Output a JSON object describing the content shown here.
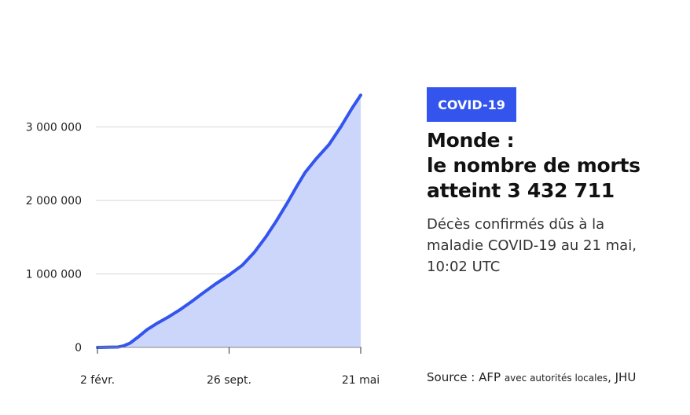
{
  "badge": "COVID-19",
  "title_lines": [
    "Monde :",
    "le nombre de morts",
    "atteint 3 432 711"
  ],
  "subtitle_lines": [
    "Décès confirmés dûs à la",
    "maladie COVID-19 au 21 mai,",
    "10:02 UTC"
  ],
  "source": {
    "prefix": "Source : AFP ",
    "small": "avec autorités locales",
    "suffix": ", JHU"
  },
  "colors": {
    "line": "#3355ee",
    "fill": "#ccd6fb",
    "badge": "#3355ee"
  },
  "chart_data": {
    "type": "area",
    "title": "",
    "xlabel": "",
    "ylabel": "",
    "ylim": [
      0,
      3432711
    ],
    "grid": true,
    "y_ticks": [
      {
        "value": 0,
        "label": "0"
      },
      {
        "value": 1000000,
        "label": "1 000 000"
      },
      {
        "value": 2000000,
        "label": "2 000 000"
      },
      {
        "value": 3000000,
        "label": "3 000 000"
      }
    ],
    "x_ticks": [
      {
        "value": "2020-02-02",
        "label": "2 févr."
      },
      {
        "value": "2020-09-26",
        "label": "26 sept."
      },
      {
        "value": "2021-05-21",
        "label": "21 mai"
      }
    ],
    "x_range": [
      "2020-02-02",
      "2021-05-21"
    ],
    "series": [
      {
        "points": [
          [
            "2020-02-02",
            0
          ],
          [
            "2020-02-20",
            2500
          ],
          [
            "2020-03-10",
            5000
          ],
          [
            "2020-03-20",
            20000
          ],
          [
            "2020-04-01",
            60000
          ],
          [
            "2020-04-15",
            140000
          ],
          [
            "2020-05-01",
            240000
          ],
          [
            "2020-05-20",
            330000
          ],
          [
            "2020-06-10",
            420000
          ],
          [
            "2020-07-01",
            520000
          ],
          [
            "2020-07-20",
            620000
          ],
          [
            "2020-08-10",
            740000
          ],
          [
            "2020-09-01",
            860000
          ],
          [
            "2020-09-26",
            985000
          ],
          [
            "2020-10-20",
            1120000
          ],
          [
            "2020-11-10",
            1290000
          ],
          [
            "2020-12-01",
            1500000
          ],
          [
            "2020-12-20",
            1720000
          ],
          [
            "2021-01-10",
            1980000
          ],
          [
            "2021-01-25",
            2180000
          ],
          [
            "2021-02-10",
            2380000
          ],
          [
            "2021-03-01",
            2560000
          ],
          [
            "2021-03-25",
            2760000
          ],
          [
            "2021-04-15",
            3000000
          ],
          [
            "2021-05-05",
            3250000
          ],
          [
            "2021-05-21",
            3432711
          ]
        ]
      }
    ]
  }
}
